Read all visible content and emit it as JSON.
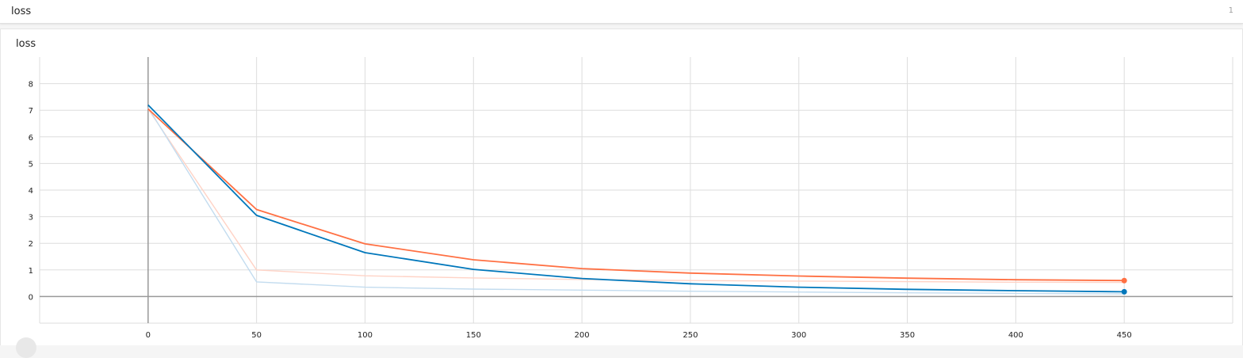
{
  "header": {
    "title": "loss",
    "count": "1"
  },
  "card": {
    "title": "loss"
  },
  "colors": {
    "orange": "#ff7043",
    "blue": "#0077bb",
    "orange_raw": "#ffd3c6",
    "blue_raw": "#c3dcef",
    "grid": "#dddddd",
    "axis": "#999999"
  },
  "chart_data": {
    "type": "line",
    "title": "loss",
    "xlabel": "",
    "ylabel": "",
    "xlim": [
      -50,
      500
    ],
    "ylim": [
      -1,
      9
    ],
    "xticks": [
      0,
      50,
      100,
      150,
      200,
      250,
      300,
      350,
      400,
      450
    ],
    "yticks": [
      0,
      1,
      2,
      3,
      4,
      5,
      6,
      7,
      8
    ],
    "grid": true,
    "series": [
      {
        "color": "#ff7043",
        "smoothed": true,
        "x": [
          0,
          50,
          100,
          150,
          200,
          250,
          300,
          350,
          400,
          450
        ],
        "values": [
          7.05,
          3.27,
          1.98,
          1.38,
          1.05,
          0.88,
          0.77,
          0.69,
          0.63,
          0.6
        ]
      },
      {
        "color": "#0077bb",
        "smoothed": true,
        "x": [
          0,
          50,
          100,
          150,
          200,
          250,
          300,
          350,
          400,
          450
        ],
        "values": [
          7.2,
          3.05,
          1.65,
          1.02,
          0.68,
          0.48,
          0.35,
          0.27,
          0.22,
          0.18
        ]
      },
      {
        "color": "#ffd3c6",
        "smoothed": false,
        "x": [
          0,
          50,
          100,
          150,
          200,
          250,
          300,
          350,
          400,
          450
        ],
        "values": [
          7.05,
          1.0,
          0.78,
          0.7,
          0.64,
          0.6,
          0.58,
          0.56,
          0.54,
          0.53
        ]
      },
      {
        "color": "#c3dcef",
        "smoothed": false,
        "x": [
          0,
          50,
          100,
          150,
          200,
          250,
          300,
          350,
          400,
          450
        ],
        "values": [
          7.1,
          0.55,
          0.35,
          0.28,
          0.24,
          0.2,
          0.17,
          0.14,
          0.12,
          0.1
        ]
      }
    ]
  }
}
